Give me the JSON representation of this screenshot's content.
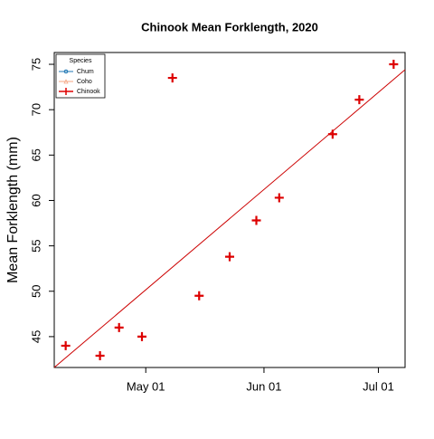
{
  "chart_data": {
    "type": "scatter",
    "title": "Chinook Mean Forklength, 2020",
    "y_label": "Mean Forklength (mm)",
    "x": [
      "2020-04-10",
      "2020-04-19",
      "2020-04-24",
      "2020-04-30",
      "2020-05-08",
      "2020-05-15",
      "2020-05-23",
      "2020-05-30",
      "2020-06-05",
      "2020-06-19",
      "2020-06-26",
      "2020-07-05"
    ],
    "series": [
      {
        "name": "Chinook",
        "color": "#dd0000",
        "values": [
          44.0,
          42.9,
          46.0,
          45.0,
          73.5,
          49.5,
          53.8,
          57.8,
          60.3,
          67.3,
          71.1,
          75.0
        ]
      }
    ],
    "trend_line": {
      "color": "#cc0000",
      "x": [
        "2020-04-07",
        "2020-07-08"
      ],
      "y": [
        41.6,
        74.4
      ]
    },
    "legend": {
      "title": "Species",
      "position": "top-left",
      "entries": [
        {
          "name": "Chum",
          "color": "#1f77b4"
        },
        {
          "name": "Coho",
          "color": "#f4a582"
        },
        {
          "name": "Chinook",
          "color": "#dd0000"
        }
      ]
    },
    "xlim": [
      "2020-04-07",
      "2020-07-08"
    ],
    "xticks": [
      {
        "value": "2020-05-01",
        "label": "May 01"
      },
      {
        "value": "2020-06-01",
        "label": "Jun 01"
      },
      {
        "value": "2020-07-01",
        "label": "Jul 01"
      }
    ],
    "ylim": [
      41.6,
      76.3
    ],
    "yticks": [
      45,
      50,
      55,
      60,
      65,
      70,
      75
    ]
  }
}
